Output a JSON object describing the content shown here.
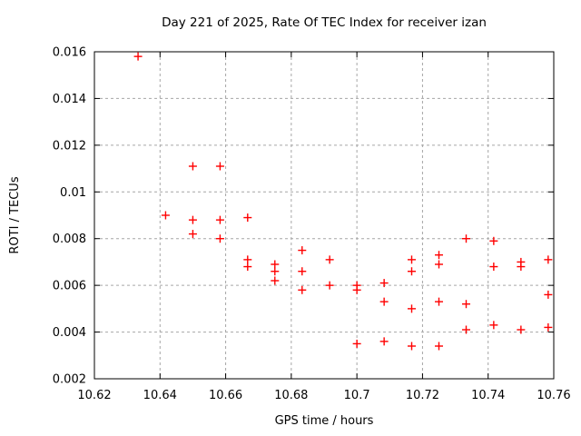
{
  "chart_data": {
    "type": "scatter",
    "title": "Day 221 of 2025, Rate Of TEC Index for receiver izan",
    "xlabel": "GPS time / hours",
    "ylabel": "ROTI / TECUs",
    "xlim": [
      10.62,
      10.76
    ],
    "ylim": [
      0.002,
      0.016
    ],
    "xtick_labels": [
      "10.62",
      "10.64",
      "10.66",
      "10.68",
      "10.7",
      "10.72",
      "10.74",
      "10.76"
    ],
    "ytick_labels": [
      "0.002",
      "0.004",
      "0.006",
      "0.008",
      "0.01",
      "0.012",
      "0.014",
      "0.016"
    ],
    "grid": true,
    "legend_position": "none",
    "marker": "plus",
    "colors": {
      "marker": "#ff0000",
      "grid": "#a6a6a6",
      "frame": "#000000",
      "background": "#ffffff"
    },
    "series": [
      {
        "name": "ROTI",
        "points": [
          [
            10.6333,
            0.0158
          ],
          [
            10.6417,
            0.009
          ],
          [
            10.65,
            0.0111
          ],
          [
            10.65,
            0.0088
          ],
          [
            10.65,
            0.0082
          ],
          [
            10.6583,
            0.0111
          ],
          [
            10.6583,
            0.0088
          ],
          [
            10.6583,
            0.008
          ],
          [
            10.6667,
            0.0089
          ],
          [
            10.6667,
            0.0071
          ],
          [
            10.6667,
            0.0068
          ],
          [
            10.675,
            0.0069
          ],
          [
            10.675,
            0.0066
          ],
          [
            10.675,
            0.0062
          ],
          [
            10.6833,
            0.0075
          ],
          [
            10.6833,
            0.0066
          ],
          [
            10.6833,
            0.0058
          ],
          [
            10.6917,
            0.0071
          ],
          [
            10.6917,
            0.006
          ],
          [
            10.7,
            0.006
          ],
          [
            10.7,
            0.0058
          ],
          [
            10.7,
            0.0035
          ],
          [
            10.7083,
            0.0061
          ],
          [
            10.7083,
            0.0053
          ],
          [
            10.7083,
            0.0036
          ],
          [
            10.7167,
            0.0071
          ],
          [
            10.7167,
            0.0066
          ],
          [
            10.7167,
            0.005
          ],
          [
            10.7167,
            0.0034
          ],
          [
            10.725,
            0.0073
          ],
          [
            10.725,
            0.0069
          ],
          [
            10.725,
            0.0053
          ],
          [
            10.725,
            0.0034
          ],
          [
            10.7333,
            0.008
          ],
          [
            10.7333,
            0.0052
          ],
          [
            10.7333,
            0.0041
          ],
          [
            10.7417,
            0.0079
          ],
          [
            10.7417,
            0.0068
          ],
          [
            10.7417,
            0.0043
          ],
          [
            10.75,
            0.007
          ],
          [
            10.75,
            0.0068
          ],
          [
            10.75,
            0.0041
          ],
          [
            10.7583,
            0.0071
          ],
          [
            10.7583,
            0.0056
          ],
          [
            10.7583,
            0.0042
          ]
        ]
      }
    ]
  }
}
